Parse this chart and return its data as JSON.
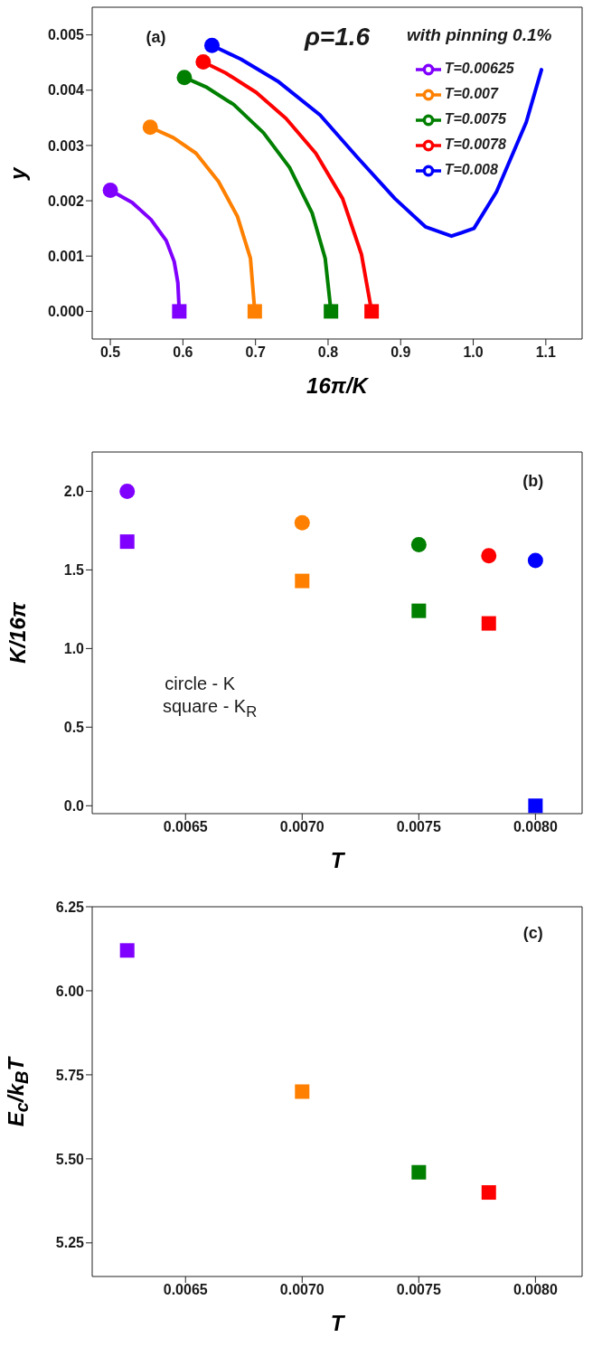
{
  "chart_data": [
    {
      "type": "line",
      "xlabel": "16π/K",
      "ylabel": "y",
      "annotations": [
        "(a)",
        "ρ=1.6",
        "with pinning 0.1%"
      ],
      "xlim": [
        0.475,
        1.15
      ],
      "xticks": [
        0.5,
        0.6,
        0.7,
        0.8,
        0.9,
        {
          "value": 1.0,
          "label": "1.0"
        },
        1.1
      ],
      "ylim": [
        -0.0005,
        0.0055
      ],
      "yticks": [
        {
          "value": 0,
          "label": "0.000"
        },
        0.001,
        0.002,
        0.003,
        0.004,
        0.005
      ],
      "legend": "top right",
      "marker": "none",
      "series": [
        {
          "name": "T=0.00625",
          "color": "#8000ff",
          "x": [
            0.5,
            0.53,
            0.556,
            0.577,
            0.588,
            0.593,
            0.595
          ],
          "values": [
            0.00219,
            0.00197,
            0.00166,
            0.00128,
            0.0009,
            0.00052,
            0
          ]
        },
        {
          "name": "T=0.007",
          "color": "#ff8000",
          "x": [
            0.555,
            0.587,
            0.618,
            0.649,
            0.675,
            0.693,
            0.699
          ],
          "values": [
            0.00333,
            0.00314,
            0.00286,
            0.00235,
            0.00172,
            0.00096,
            0
          ]
        },
        {
          "name": "T=0.0075",
          "color": "#007f00",
          "x": [
            0.602,
            0.633,
            0.67,
            0.711,
            0.747,
            0.778,
            0.796,
            0.804
          ],
          "values": [
            0.00423,
            0.00405,
            0.00374,
            0.00323,
            0.0026,
            0.00178,
            0.00096,
            0
          ]
        },
        {
          "name": "T=0.0078",
          "color": "#ff0000",
          "x": [
            0.628,
            0.659,
            0.701,
            0.742,
            0.783,
            0.82,
            0.846,
            0.86
          ],
          "values": [
            0.00451,
            0.00431,
            0.00396,
            0.00349,
            0.00286,
            0.00204,
            0.00103,
            0
          ]
        },
        {
          "name": "T=0.008",
          "color": "#0000ff",
          "x": [
            0.64,
            0.68,
            0.732,
            0.789,
            0.84,
            0.892,
            0.934,
            0.97,
            1.001,
            1.032,
            1.073,
            1.094
          ],
          "values": [
            0.00481,
            0.00456,
            0.00415,
            0.00355,
            0.00279,
            0.00204,
            0.00153,
            0.00136,
            0.0015,
            0.00216,
            0.00342,
            0.00437
          ]
        },
        {
          "type": "scatter",
          "marker": "circle",
          "x": [
            0.5,
            0.555,
            0.602,
            0.628,
            0.64
          ],
          "values": [
            0.00219,
            0.00333,
            0.00423,
            0.00451,
            0.00481
          ],
          "colors": [
            "#8000ff",
            "#ff8000",
            "#007f00",
            "#ff0000",
            "#0000ff"
          ]
        },
        {
          "type": "scatter",
          "marker": "square",
          "x": [
            0.595,
            0.699,
            0.804,
            0.86
          ],
          "values": [
            0,
            0,
            0,
            0
          ],
          "colors": [
            "#8000ff",
            "#ff8000",
            "#007f00",
            "#ff0000"
          ]
        }
      ]
    },
    {
      "type": "scatter",
      "xlabel": "T",
      "ylabel": "K/16π",
      "annotations": [
        "(b)",
        "circle - K",
        "square - K$_{R}$"
      ],
      "xlim": [
        0.0061,
        0.0082
      ],
      "xticks": [
        0.0065,
        {
          "value": 0.007,
          "label": "0.0070"
        },
        0.0075,
        {
          "value": 0.008,
          "label": "0.0080"
        }
      ],
      "ylim": [
        -0.05,
        2.25
      ],
      "yticks": [
        {
          "value": 0,
          "label": "0.0"
        },
        0.5,
        {
          "value": 1,
          "label": "1.0"
        },
        1.5,
        {
          "value": 2,
          "label": "2.0"
        }
      ],
      "series": [
        {
          "marker": "circle",
          "x": [
            0.00625,
            0.007,
            0.0075,
            0.0078,
            0.008
          ],
          "values": [
            2.0,
            1.8,
            1.66,
            1.59,
            1.56
          ],
          "colors": [
            "#8000ff",
            "#ff8000",
            "#007f00",
            "#ff0000",
            "#0000ff"
          ]
        },
        {
          "marker": "square",
          "x": [
            0.00625,
            0.007,
            0.0075,
            0.0078,
            0.008
          ],
          "values": [
            1.68,
            1.43,
            1.24,
            1.16,
            0
          ],
          "colors": [
            "#8000ff",
            "#ff8000",
            "#007f00",
            "#ff0000",
            "#0000ff"
          ]
        }
      ]
    },
    {
      "type": "scatter",
      "xlabel": "T",
      "ylabel": "E$_{c}$/k$_{B}$T",
      "annotations": [
        "(c)"
      ],
      "xlim": [
        0.0061,
        0.0082
      ],
      "xticks": [
        0.0065,
        {
          "value": 0.007,
          "label": "0.0070"
        },
        0.0075,
        {
          "value": 0.008,
          "label": "0.0080"
        }
      ],
      "ylim": [
        5.15,
        6.25
      ],
      "yticks": [
        5.25,
        {
          "value": 5.5,
          "label": "5.50"
        },
        5.75,
        {
          "value": 6,
          "label": "6.00"
        },
        6.25
      ],
      "series": [
        {
          "marker": "square",
          "x": [
            0.00625,
            0.007,
            0.0075,
            0.0078
          ],
          "values": [
            6.12,
            5.7,
            5.46,
            5.4
          ],
          "colors": [
            "#8000ff",
            "#ff8000",
            "#007f00",
            "#ff0000"
          ]
        }
      ]
    }
  ]
}
